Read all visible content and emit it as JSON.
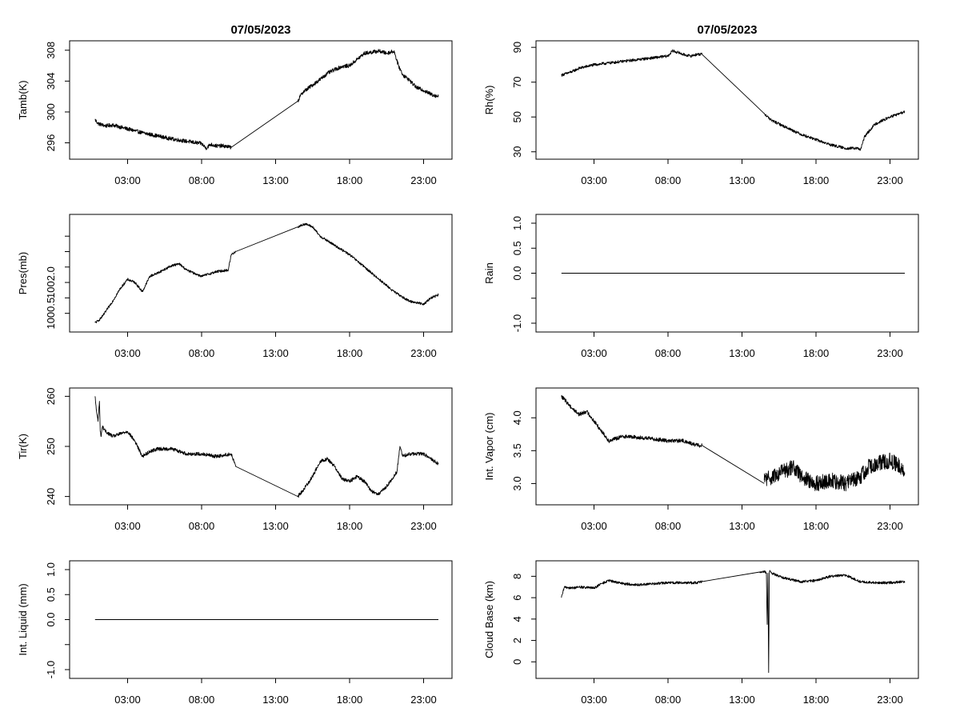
{
  "chart_data": [
    {
      "id": "tamb",
      "type": "line",
      "title": "07/05/2023",
      "ylabel": "Tamb(K)",
      "xlim": [
        0,
        24
      ],
      "ylim": [
        294.5,
        308.6
      ],
      "yticks": [
        296,
        300,
        304,
        308
      ],
      "ytick_labels": [
        "296",
        "300",
        "304",
        "308"
      ],
      "xticks": [
        3,
        8,
        13,
        18,
        23
      ],
      "xtick_labels": [
        "03:00",
        "08:00",
        "13:00",
        "18:00",
        "23:00"
      ],
      "noise": 0.25,
      "series": [
        {
          "name": "Tamb(K)",
          "x": [
            0.8,
            1.0,
            1.5,
            2.0,
            3.0,
            4.0,
            5.0,
            6.0,
            7.0,
            8.0,
            8.3,
            8.6,
            9.0,
            9.5,
            10.0,
            14.5,
            14.8,
            15.5,
            16.0,
            16.5,
            17.0,
            17.5,
            18.0,
            18.5,
            19.0,
            20.0,
            20.5,
            21.0,
            21.3,
            21.6,
            22.0,
            22.5,
            23.0,
            23.5,
            24.0
          ],
          "y": [
            299.0,
            298.5,
            298.2,
            298.3,
            297.8,
            297.3,
            296.9,
            296.5,
            296.2,
            295.9,
            295.3,
            295.8,
            295.6,
            295.6,
            295.4,
            301.4,
            302.5,
            303.5,
            304.2,
            305.0,
            305.5,
            305.9,
            306.0,
            306.8,
            307.6,
            307.9,
            307.6,
            307.9,
            306.0,
            304.8,
            304.2,
            303.2,
            302.8,
            302.3,
            302.0
          ]
        }
      ]
    },
    {
      "id": "rh",
      "type": "line",
      "title": "07/05/2023",
      "ylabel": "Rh(%)",
      "xlim": [
        0,
        24
      ],
      "ylim": [
        28.5,
        91
      ],
      "yticks": [
        30,
        50,
        70,
        90
      ],
      "ytick_labels": [
        "30",
        "50",
        "70",
        "90"
      ],
      "xticks": [
        3,
        8,
        13,
        18,
        23
      ],
      "xtick_labels": [
        "03:00",
        "08:00",
        "13:00",
        "18:00",
        "23:00"
      ],
      "noise": 0.8,
      "series": [
        {
          "name": "Rh(%)",
          "x": [
            0.8,
            1.5,
            2.0,
            3.0,
            4.0,
            5.0,
            6.0,
            7.0,
            8.0,
            8.3,
            8.7,
            9.0,
            9.5,
            10.0,
            10.3,
            14.5,
            15.0,
            16.0,
            17.0,
            18.0,
            19.0,
            20.0,
            20.8,
            21.0,
            21.3,
            21.6,
            22.0,
            23.0,
            24.0
          ],
          "y": [
            74,
            76,
            78,
            80,
            81,
            82,
            83,
            84,
            85,
            88,
            87,
            86,
            85,
            86,
            86,
            52,
            48,
            44,
            40,
            37,
            34,
            32,
            32,
            31,
            39,
            42,
            46,
            50,
            53
          ]
        }
      ]
    },
    {
      "id": "pres",
      "type": "line",
      "title": "",
      "ylabel": "Pres(mb)",
      "xlim": [
        0,
        24
      ],
      "ylim": [
        1000.05,
        1003.55
      ],
      "yticks": [
        1000.5,
        1001.0,
        1001.5,
        1002.0,
        1002.5,
        1003.0
      ],
      "ytick_labels": [
        "1000.5",
        "",
        "1002.0",
        "",
        "",
        ""
      ],
      "xticks": [
        3,
        8,
        13,
        18,
        23
      ],
      "xtick_labels": [
        "03:00",
        "08:00",
        "13:00",
        "18:00",
        "23:00"
      ],
      "noise": 0.04,
      "series": [
        {
          "name": "Pres(mb)",
          "x": [
            0.8,
            1.0,
            1.3,
            2.0,
            2.5,
            3.0,
            3.5,
            4.0,
            4.5,
            5.0,
            6.0,
            6.5,
            7.0,
            8.0,
            9.0,
            9.8,
            10.0,
            10.3,
            14.5,
            15.0,
            15.5,
            16.0,
            17.0,
            18.0,
            19.0,
            20.0,
            21.0,
            22.0,
            23.0,
            23.5,
            24.0
          ],
          "y": [
            1000.2,
            1000.25,
            1000.4,
            1000.9,
            1001.3,
            1001.6,
            1001.5,
            1001.2,
            1001.7,
            1001.8,
            1002.05,
            1002.1,
            1001.9,
            1001.7,
            1001.85,
            1001.9,
            1002.4,
            1002.5,
            1003.3,
            1003.4,
            1003.3,
            1003.0,
            1002.7,
            1002.4,
            1002.0,
            1001.6,
            1001.2,
            1000.9,
            1000.8,
            1001.0,
            1001.1
          ]
        }
      ]
    },
    {
      "id": "rain",
      "type": "line",
      "title": "",
      "ylabel": "Rain",
      "xlim": [
        0,
        24
      ],
      "ylim": [
        -1.08,
        1.08
      ],
      "yticks": [
        -1.0,
        -0.5,
        0.0,
        0.5,
        1.0
      ],
      "ytick_labels": [
        "-1.0",
        "",
        "0.0",
        "0.5",
        "1.0"
      ],
      "xticks": [
        3,
        8,
        13,
        18,
        23
      ],
      "xtick_labels": [
        "03:00",
        "08:00",
        "13:00",
        "18:00",
        "23:00"
      ],
      "noise": 0,
      "series": [
        {
          "name": "Rain",
          "x": [
            0.8,
            24.0
          ],
          "y": [
            0.0,
            0.0
          ]
        }
      ]
    },
    {
      "id": "tir",
      "type": "line",
      "title": "",
      "ylabel": "Tir(K)",
      "xlim": [
        0,
        24
      ],
      "ylim": [
        239.3,
        260.7
      ],
      "yticks": [
        240,
        250,
        260
      ],
      "ytick_labels": [
        "240",
        "250",
        "260"
      ],
      "xticks": [
        3,
        8,
        13,
        18,
        23
      ],
      "xtick_labels": [
        "03:00",
        "08:00",
        "13:00",
        "18:00",
        "23:00"
      ],
      "noise": 0.35,
      "series": [
        {
          "name": "Tir(K)",
          "x": [
            0.8,
            0.9,
            1.0,
            1.1,
            1.15,
            1.2,
            1.3,
            1.5,
            2.0,
            2.5,
            3.0,
            3.5,
            4.0,
            4.5,
            5.0,
            6.0,
            7.0,
            8.0,
            9.0,
            10.0,
            10.3,
            14.5,
            14.8,
            15.5,
            16.0,
            16.5,
            17.0,
            17.5,
            18.0,
            18.5,
            19.0,
            19.5,
            20.0,
            20.5,
            21.0,
            21.2,
            21.4,
            21.6,
            22.0,
            23.0,
            24.0
          ],
          "y": [
            260,
            257,
            255,
            259,
            253,
            252,
            254,
            253,
            252,
            252.5,
            253,
            251,
            248,
            249,
            249.5,
            249.5,
            248.5,
            248.5,
            248,
            248.5,
            246,
            240,
            241,
            244,
            247,
            247.5,
            246,
            243.5,
            243,
            244,
            243,
            241,
            240.5,
            242,
            244,
            245,
            250,
            248,
            248.5,
            248.5,
            246.5
          ]
        }
      ]
    },
    {
      "id": "vapor",
      "type": "line",
      "title": "",
      "ylabel": "Int. Vapor (cm)",
      "xlim": [
        0,
        24
      ],
      "ylim": [
        2.75,
        4.38
      ],
      "yticks": [
        3.0,
        3.5,
        4.0
      ],
      "ytick_labels": [
        "3.0",
        "3.5",
        "4.0"
      ],
      "xticks": [
        3,
        8,
        13,
        18,
        23
      ],
      "xtick_labels": [
        "03:00",
        "08:00",
        "13:00",
        "18:00",
        "23:00"
      ],
      "noise": 0.03,
      "series": [
        {
          "name": "Int. Vapor (cm)",
          "x": [
            0.8,
            1.0,
            1.5,
            2.0,
            2.5,
            3.0,
            3.5,
            4.0,
            5.0,
            6.0,
            7.0,
            8.0,
            9.0,
            10.0,
            10.3,
            14.5
          ],
          "y": [
            4.32,
            4.28,
            4.15,
            4.05,
            4.1,
            3.95,
            3.8,
            3.65,
            3.72,
            3.7,
            3.68,
            3.65,
            3.65,
            3.58,
            3.58,
            3.0
          ]
        },
        {
          "name": "Int. Vapor (cm) noisy",
          "x": [
            14.5,
            15.0,
            16.0,
            16.5,
            17.0,
            18.0,
            19.0,
            20.0,
            21.0,
            21.5,
            22.0,
            23.0,
            23.5,
            24.0
          ],
          "y": [
            3.05,
            3.1,
            3.2,
            3.25,
            3.1,
            3.0,
            3.05,
            3.0,
            3.1,
            3.25,
            3.3,
            3.35,
            3.3,
            3.15
          ],
          "noise": 0.12
        }
      ]
    },
    {
      "id": "liquid",
      "type": "line",
      "title": "",
      "ylabel": "Int. Liquid (mm)",
      "xlim": [
        0,
        24
      ],
      "ylim": [
        -1.08,
        1.08
      ],
      "yticks": [
        -1.0,
        -0.5,
        0.0,
        0.5,
        1.0
      ],
      "ytick_labels": [
        "-1.0",
        "",
        "0.0",
        "0.5",
        "1.0"
      ],
      "xticks": [
        3,
        8,
        13,
        18,
        23
      ],
      "xtick_labels": [
        "03:00",
        "08:00",
        "13:00",
        "18:00",
        "23:00"
      ],
      "noise": 0,
      "series": [
        {
          "name": "Int. Liquid (mm)",
          "x": [
            0.8,
            24.0
          ],
          "y": [
            0.0,
            0.0
          ]
        }
      ]
    },
    {
      "id": "cloud",
      "type": "line",
      "title": "",
      "ylabel": "Cloud Base (km)",
      "xlim": [
        0,
        24
      ],
      "ylim": [
        -1.1,
        9.0
      ],
      "yticks": [
        0,
        2,
        4,
        6,
        8
      ],
      "ytick_labels": [
        "0",
        "2",
        "4",
        "6",
        "8"
      ],
      "xticks": [
        3,
        8,
        13,
        18,
        23
      ],
      "xtick_labels": [
        "03:00",
        "08:00",
        "13:00",
        "18:00",
        "23:00"
      ],
      "noise": 0.12,
      "series": [
        {
          "name": "Cloud Base (km)",
          "x": [
            0.8,
            0.9,
            1.0,
            1.5,
            2.0,
            3.0,
            3.5,
            4.0,
            5.0,
            6.0,
            7.0,
            8.0,
            9.0,
            10.0,
            10.3,
            14.2,
            14.5,
            14.65,
            14.7,
            14.75,
            14.8,
            14.85,
            14.9,
            15.0,
            15.5,
            16.0,
            17.0,
            18.0,
            18.5,
            19.0,
            20.0,
            21.0,
            22.0,
            23.0,
            24.0
          ],
          "y": [
            6.0,
            6.5,
            7.0,
            6.9,
            7.0,
            6.9,
            7.3,
            7.6,
            7.3,
            7.2,
            7.3,
            7.4,
            7.4,
            7.4,
            7.5,
            8.4,
            8.5,
            8.3,
            3.5,
            8.3,
            -1.0,
            8.4,
            8.5,
            8.3,
            8.0,
            7.8,
            7.5,
            7.6,
            7.8,
            8.0,
            8.1,
            7.5,
            7.4,
            7.4,
            7.5
          ]
        }
      ]
    }
  ]
}
